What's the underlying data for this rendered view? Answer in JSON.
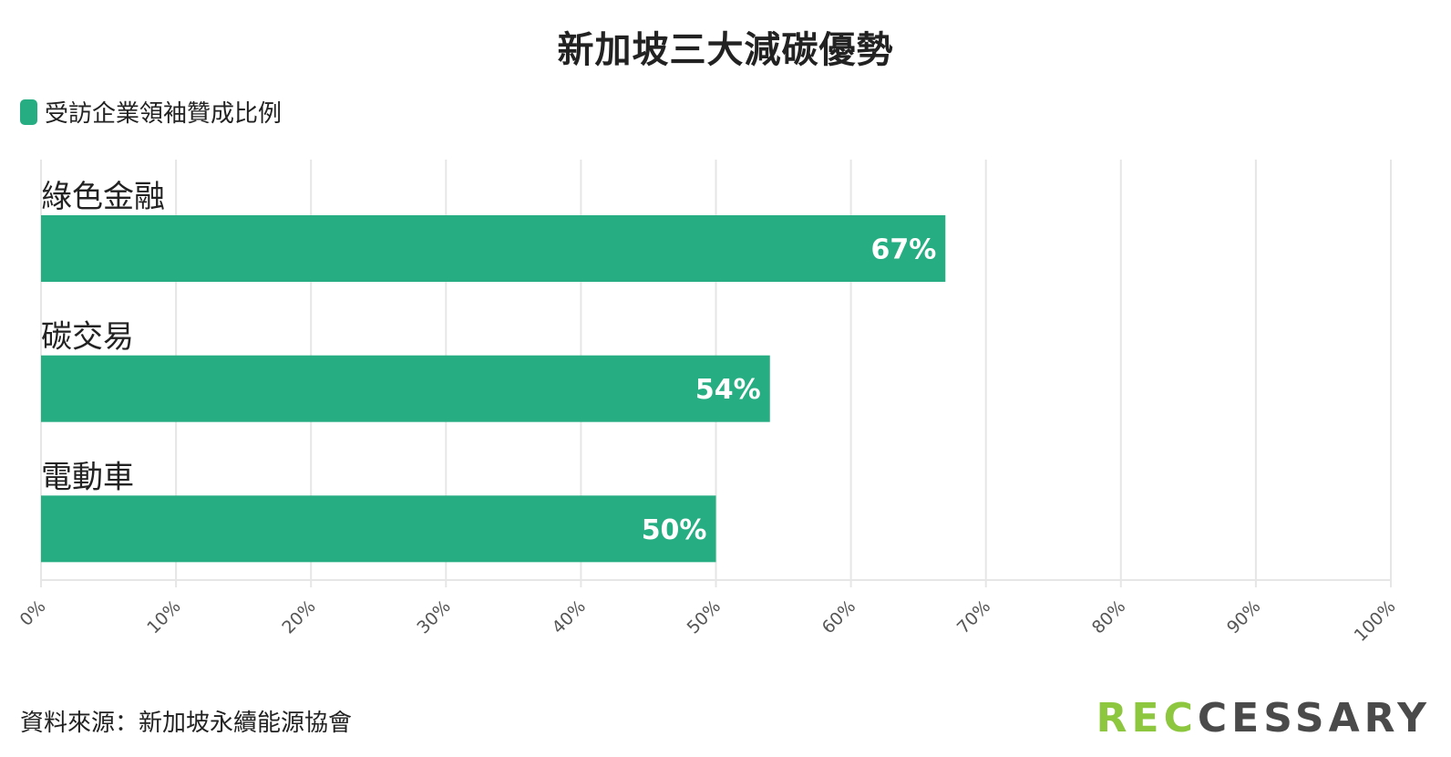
{
  "chart_data": {
    "type": "bar",
    "orientation": "horizontal",
    "title": "新加坡三大減碳優勢",
    "categories": [
      "綠色金融",
      "碳交易",
      "電動車"
    ],
    "series": [
      {
        "name": "受訪企業領袖贊成比例",
        "values": [
          67,
          54,
          50
        ],
        "color": "#26ad82"
      }
    ],
    "data_labels": [
      "67%",
      "54%",
      "50%"
    ],
    "xlim": [
      0,
      100
    ],
    "x_ticks": [
      "0%",
      "10%",
      "20%",
      "30%",
      "40%",
      "50%",
      "60%",
      "70%",
      "80%",
      "90%",
      "100%"
    ],
    "grid": true,
    "legend_position": "top-left"
  },
  "footer": {
    "source": "資料來源：新加坡永續能源協會",
    "logo_part1": "REC",
    "logo_part2": "CESSARY"
  }
}
